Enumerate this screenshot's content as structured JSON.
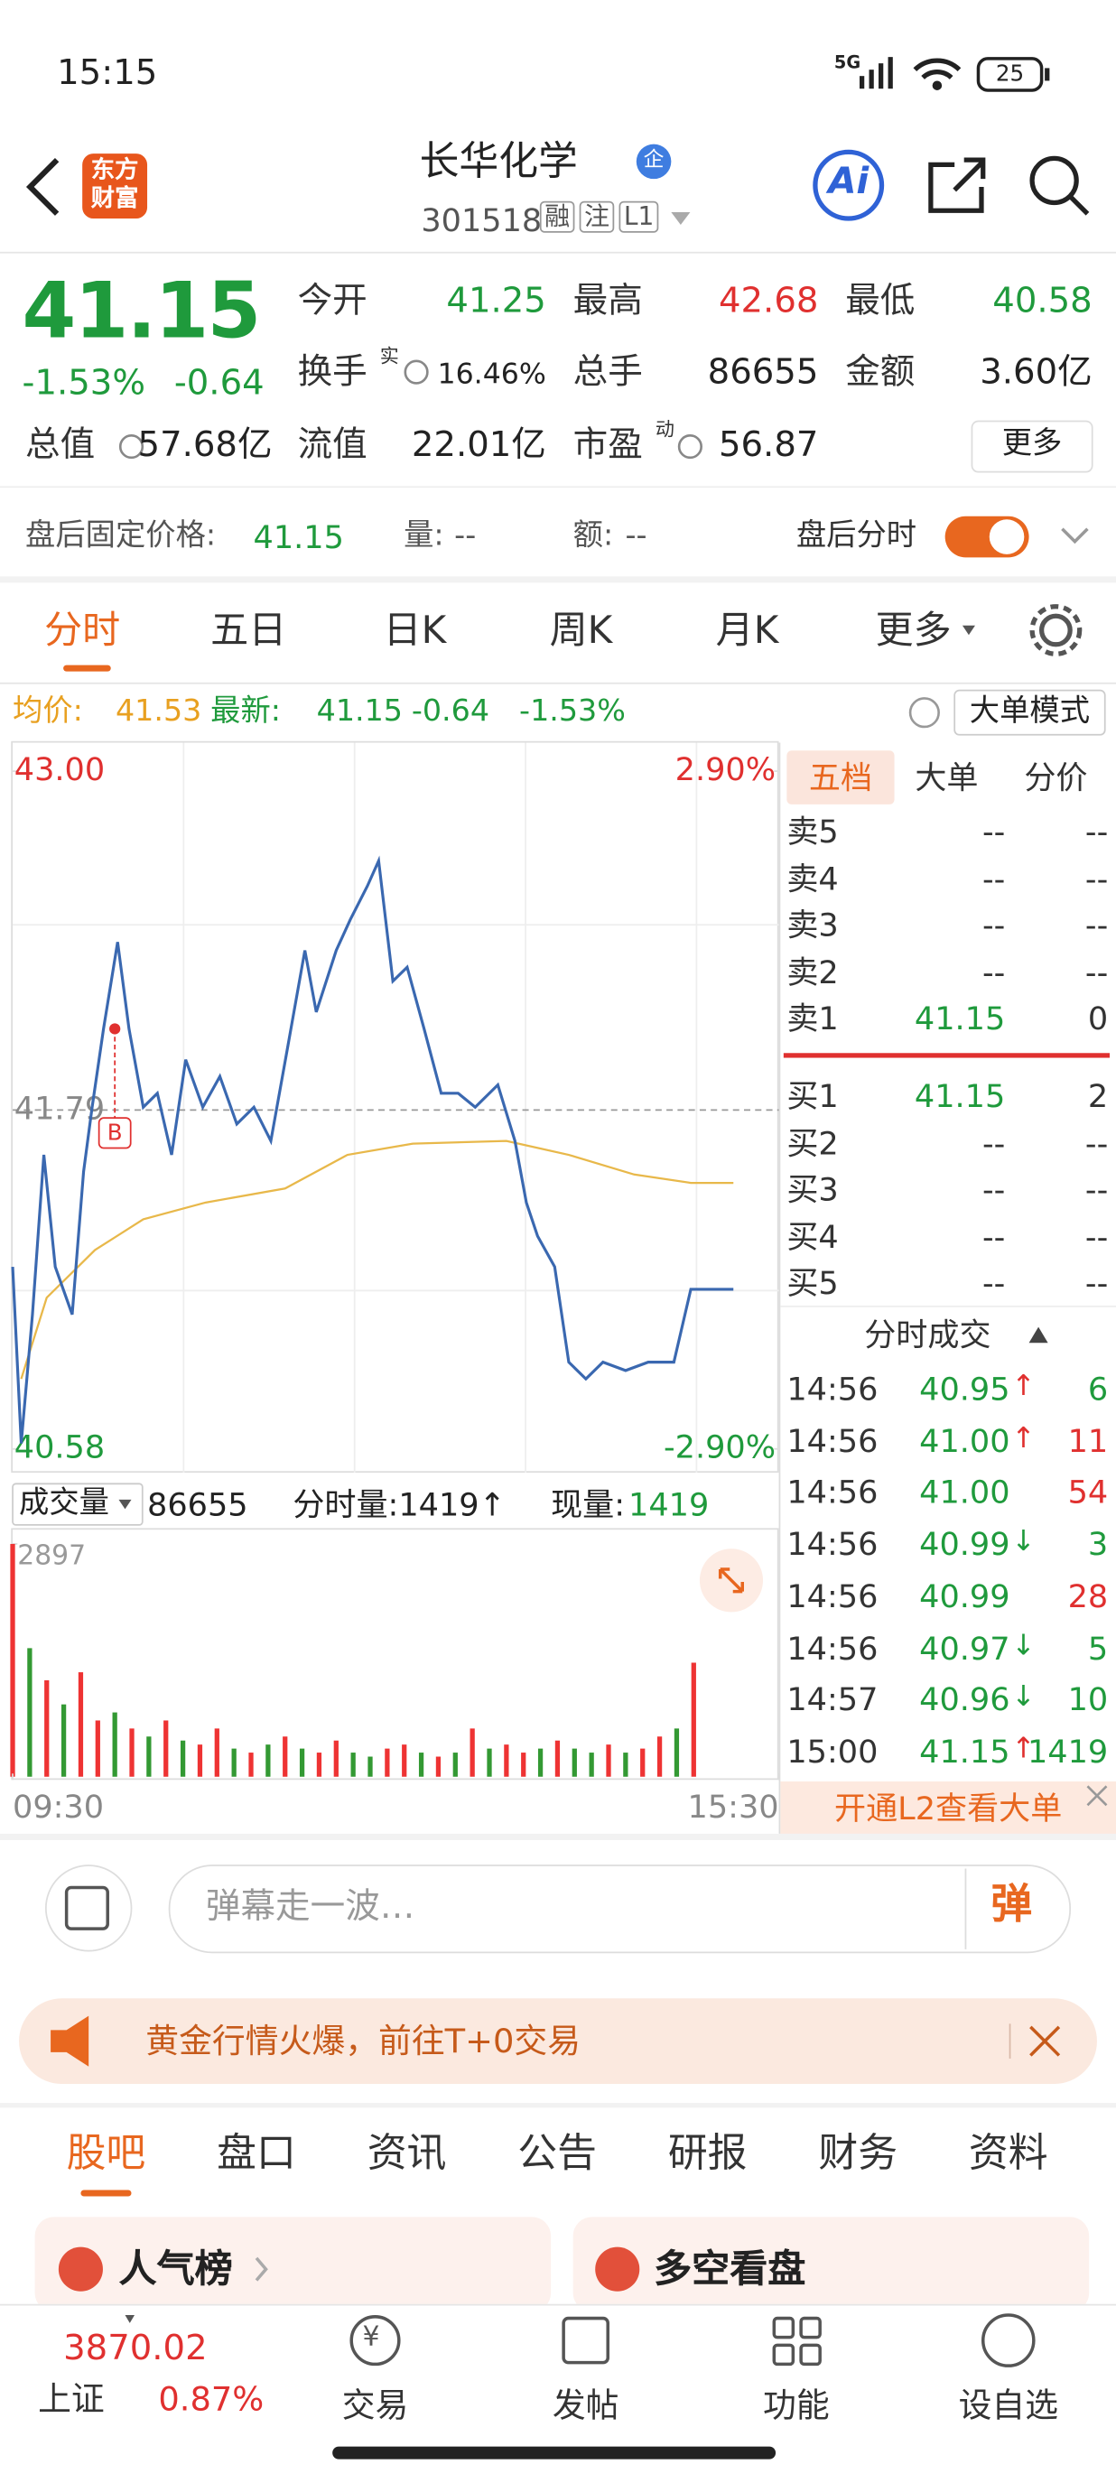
{
  "status": {
    "time": "15:15",
    "network": "5G",
    "battery": "25"
  },
  "header": {
    "logo": [
      "东方",
      "财富"
    ],
    "title": "长华化学",
    "badge": "企",
    "code": "301518",
    "tags": [
      "融",
      "注",
      "L1"
    ],
    "ai": "Ai"
  },
  "quote": {
    "price": "41.15",
    "change_pct": "-1.53%",
    "change": "-0.64",
    "fields": [
      {
        "label": "今开",
        "value": "41.25"
      },
      {
        "label": "最高",
        "value": "42.68"
      },
      {
        "label": "最低",
        "value": "40.58"
      },
      {
        "label": "换手",
        "sup": "实",
        "value": "16.46%"
      },
      {
        "label": "总手",
        "value": "86655"
      },
      {
        "label": "金额",
        "value": "3.60亿"
      },
      {
        "label": "总值",
        "value": "57.68亿"
      },
      {
        "label": "流值",
        "value": "22.01亿"
      },
      {
        "label": "市盈",
        "sup": "动",
        "value": "56.87"
      }
    ],
    "more": "更多"
  },
  "after_hours": {
    "price_label": "盘后固定价格:",
    "price": "41.15",
    "volume_label": "量:",
    "volume": "--",
    "amount_label": "额:",
    "amount": "--",
    "toggle": "盘后分时"
  },
  "tabs": [
    "分时",
    "五日",
    "日K",
    "周K",
    "月K",
    "更多"
  ],
  "info": {
    "avg_label": "均价:",
    "avg": "41.53",
    "last_label": "最新:",
    "last": "41.15",
    "change": "-0.64",
    "change_pct": "-1.53%",
    "mode": "大单模式"
  },
  "chart_data": [
    {
      "type": "line",
      "series": [
        {
          "color": "#3a68b0",
          "x": [
            0,
            3,
            7,
            11,
            15,
            21,
            25,
            28,
            32,
            37,
            41,
            46,
            51,
            56,
            61,
            67,
            73,
            79,
            85,
            91,
            97,
            103,
            107,
            114,
            119,
            125,
            129,
            134,
            139,
            145,
            151,
            157,
            163,
            171,
            177,
            181,
            185,
            191,
            196,
            202,
            208,
            216,
            224,
            233,
            239,
            254
          ],
          "values": [
            41.23,
            40.6,
            41.06,
            41.63,
            41.23,
            41.06,
            41.57,
            41.8,
            42.08,
            42.39,
            42.08,
            41.8,
            41.85,
            41.63,
            41.97,
            41.8,
            41.91,
            41.74,
            41.8,
            41.68,
            42.02,
            42.36,
            42.14,
            42.36,
            42.47,
            42.59,
            42.68,
            42.25,
            42.3,
            42.08,
            41.85,
            41.85,
            41.8,
            41.88,
            41.68,
            41.46,
            41.34,
            41.23,
            40.89,
            40.83,
            40.89,
            40.86,
            40.89,
            40.89,
            41.15,
            41.15
          ]
        },
        {
          "color": "#e8b84a",
          "x": [
            3,
            12,
            29,
            46,
            68,
            96,
            118,
            141,
            174,
            196,
            219,
            239,
            254
          ],
          "values": [
            40.83,
            41.12,
            41.29,
            41.4,
            41.46,
            41.51,
            41.63,
            41.67,
            41.68,
            41.63,
            41.56,
            41.53,
            41.53
          ]
        }
      ],
      "ylim": [
        40.58,
        43
      ],
      "yticks": [
        40.58,
        41.79,
        {
          "value": 43,
          "label": "43.00"
        }
      ],
      "y2lim": [
        -2.9,
        2.9
      ],
      "y2ticks": [
        {
          "value": -2.9,
          "label": "-2.90%"
        },
        {
          "value": 2.9,
          "label": "2.90%"
        }
      ],
      "xlim": [
        0,
        270
      ],
      "marker": {
        "label": "B",
        "x": 36,
        "value": 42.08
      }
    },
    {
      "type": "bar",
      "x": [
        0,
        6,
        12,
        18,
        24,
        30,
        36,
        42,
        48,
        54,
        60,
        66,
        72,
        78,
        84,
        90,
        96,
        102,
        108,
        114,
        120,
        126,
        132,
        138,
        144,
        150,
        156,
        162,
        168,
        174,
        180,
        186,
        192,
        198,
        204,
        210,
        216,
        222,
        228,
        234,
        240
      ],
      "values": [
        2897,
        1600,
        1200,
        900,
        1300,
        700,
        800,
        600,
        500,
        700,
        450,
        400,
        600,
        350,
        300,
        400,
        500,
        350,
        300,
        450,
        300,
        250,
        350,
        400,
        300,
        250,
        300,
        600,
        350,
        400,
        300,
        350,
        450,
        350,
        300,
        400,
        300,
        350,
        500,
        600,
        1419
      ],
      "colors": [
        "#e33",
        "#393",
        "#e33",
        "#393",
        "#e33",
        "#e33",
        "#393",
        "#e33",
        "#393",
        "#e33",
        "#393",
        "#e33",
        "#e33",
        "#393",
        "#e33",
        "#393",
        "#e33",
        "#393",
        "#e33",
        "#e33",
        "#393",
        "#393",
        "#e33",
        "#e33",
        "#393",
        "#e33",
        "#393",
        "#e33",
        "#393",
        "#e33",
        "#e33",
        "#393",
        "#e33",
        "#393",
        "#393",
        "#e33",
        "#393",
        "#e33",
        "#e33",
        "#393",
        "#e33"
      ],
      "ylim": [
        0,
        2897
      ],
      "yticks": [
        2897
      ],
      "xlim": [
        0,
        270
      ],
      "xticks": [
        {
          "value": 0,
          "label": "09:30"
        },
        {
          "value": 270,
          "label": "15:30"
        }
      ]
    }
  ],
  "volume_header": {
    "label": "成交量",
    "total": "86655",
    "tick_label": "分时量:1419↑",
    "now_label": "现量:",
    "now": "1419"
  },
  "book": {
    "tabs": [
      "五档",
      "大单",
      "分价"
    ],
    "asks": [
      {
        "label": "卖5",
        "price": "--",
        "volume": "--"
      },
      {
        "label": "卖4",
        "price": "--",
        "volume": "--"
      },
      {
        "label": "卖3",
        "price": "--",
        "volume": "--"
      },
      {
        "label": "卖2",
        "price": "--",
        "volume": "--"
      },
      {
        "label": "卖1",
        "price": "41.15",
        "volume": "0"
      }
    ],
    "bids": [
      {
        "label": "买1",
        "price": "41.15",
        "volume": "2"
      },
      {
        "label": "买2",
        "price": "--",
        "volume": "--"
      },
      {
        "label": "买3",
        "price": "--",
        "volume": "--"
      },
      {
        "label": "买4",
        "price": "--",
        "volume": "--"
      },
      {
        "label": "买5",
        "price": "--",
        "volume": "--"
      }
    ],
    "trades_title": "分时成交",
    "trades": [
      {
        "time": "14:56",
        "price": "40.95",
        "arrow": "↑",
        "volume": "6",
        "volume_color": "#1f9a3c"
      },
      {
        "time": "14:56",
        "price": "41.00",
        "arrow": "↑",
        "volume": "11",
        "volume_color": "#e0302f"
      },
      {
        "time": "14:56",
        "price": "41.00",
        "volume": "54",
        "volume_color": "#e0302f"
      },
      {
        "time": "14:56",
        "price": "40.99",
        "arrow": "↓",
        "volume": "3",
        "volume_color": "#1f9a3c"
      },
      {
        "time": "14:56",
        "price": "40.99",
        "volume": "28",
        "volume_color": "#e0302f"
      },
      {
        "time": "14:56",
        "price": "40.97",
        "arrow": "↓",
        "volume": "5",
        "volume_color": "#1f9a3c"
      },
      {
        "time": "14:57",
        "price": "40.96",
        "arrow": "↓",
        "volume": "10",
        "volume_color": "#1f9a3c"
      },
      {
        "time": "15:00",
        "price": "41.15",
        "arrow": "↑",
        "volume": "1419",
        "volume_color": "#1f9a3c"
      }
    ],
    "l2": "开通L2查看大单"
  },
  "comment": {
    "placeholder": "弹幕走一波…",
    "button": "弹"
  },
  "banner": "黄金行情火爆，前往T+0交易",
  "section_tabs": [
    "股吧",
    "盘口",
    "资讯",
    "公告",
    "研报",
    "财务",
    "资料"
  ],
  "cards": [
    "人气榜",
    "多空看盘"
  ],
  "nav": {
    "index_value": "3870.02",
    "index_name": "上证",
    "index_change": "0.87%",
    "items": [
      "交易",
      "发帖",
      "功能",
      "设自选"
    ]
  }
}
